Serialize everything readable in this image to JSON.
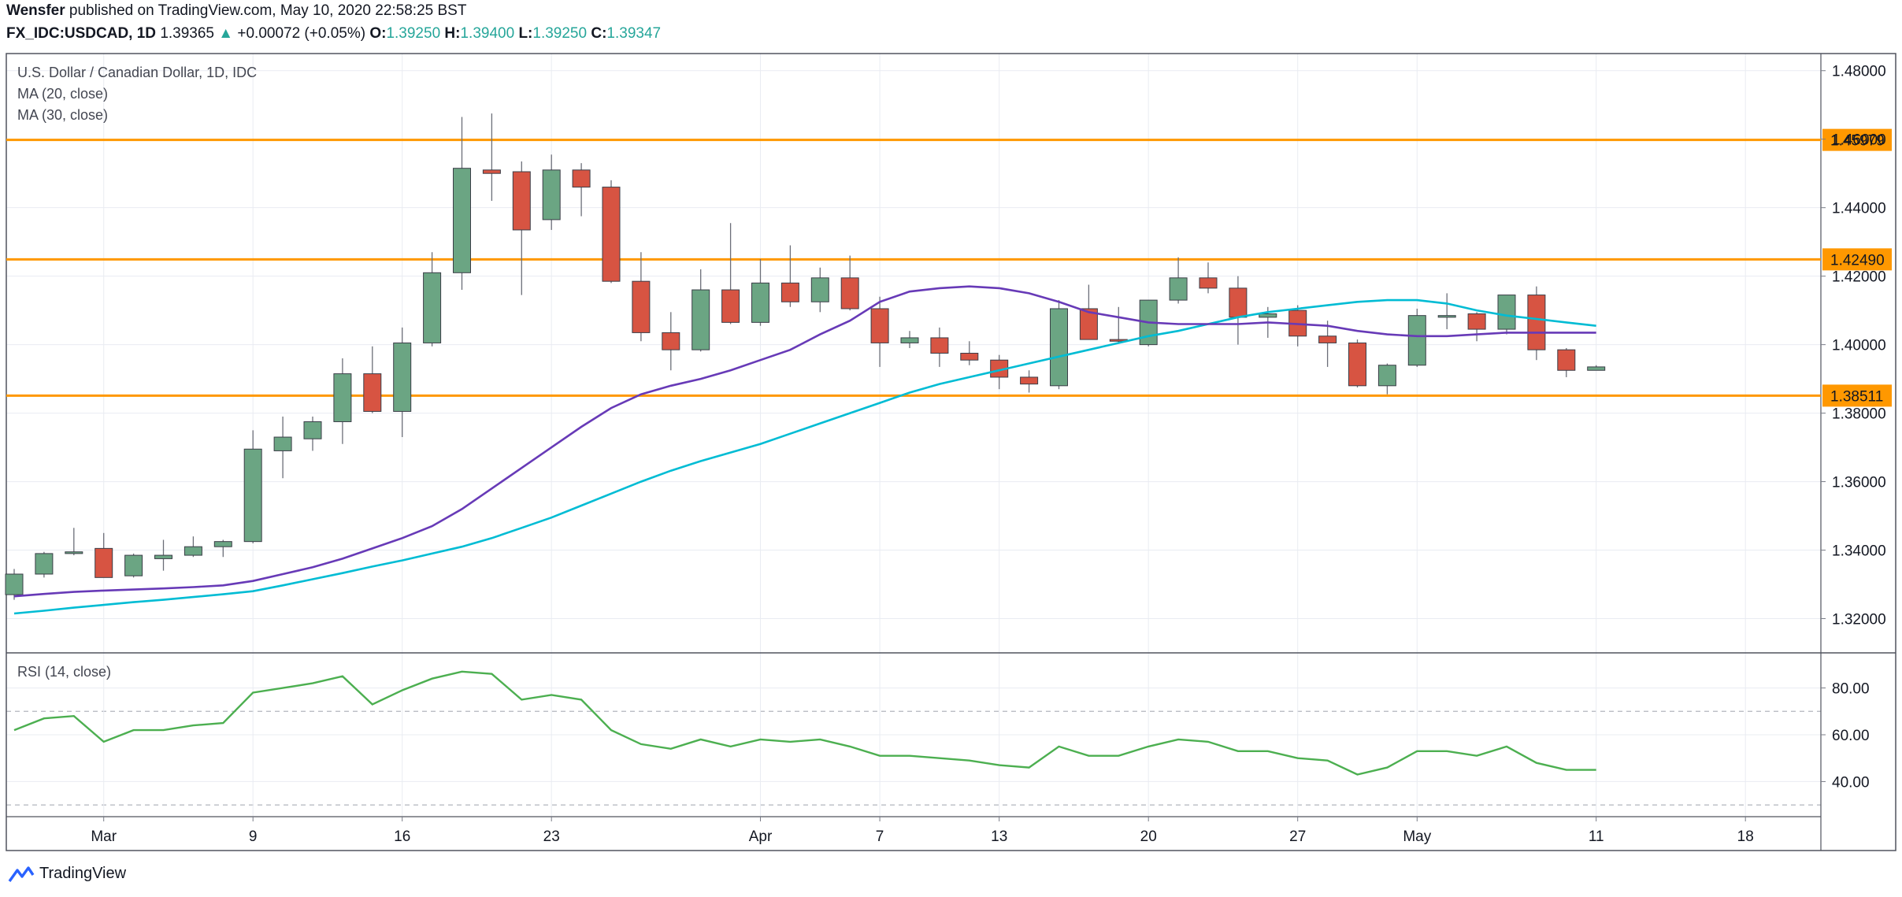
{
  "header": {
    "author": "Wensfer",
    "published_text": "published on TradingView.com, May 10, 2020 22:58:25 BST",
    "symbol": "FX_IDC:USDCAD, 1D",
    "last": "1.39365",
    "change_arrow": "▲",
    "change": "+0.00072 (+0.05%)",
    "o_label": "O:",
    "o_value": "1.39250",
    "h_label": "H:",
    "h_value": "1.39400",
    "l_label": "L:",
    "l_value": "1.39250",
    "c_label": "C:",
    "c_value": "1.39347"
  },
  "legend": {
    "instrument": "U.S. Dollar / Canadian Dollar, 1D, IDC",
    "ma20": "MA (20, close)",
    "ma30": "MA (30, close)",
    "rsi": "RSI (14, close)"
  },
  "footer": {
    "brand": "TradingView"
  },
  "colors": {
    "up": "#6ba583",
    "down": "#d75442",
    "ma20": "#673ab7",
    "ma30": "#00bcd4",
    "rsi": "#4caf50",
    "hline": "#ff9800",
    "hline_label_bg": "#ff9800",
    "grid": "#e9ecf2"
  },
  "chart_data": [
    {
      "type": "candlestick",
      "title": "U.S. Dollar / Canadian Dollar, 1D, IDC",
      "ylim": [
        1.31,
        1.485
      ],
      "price_ticks": [
        "1.48000",
        "1.46000",
        "1.44000",
        "1.42000",
        "1.40000",
        "1.38000",
        "1.36000",
        "1.34000",
        "1.32000"
      ],
      "x_ticks": [
        {
          "label": "Mar",
          "i": 3
        },
        {
          "label": "9",
          "i": 8
        },
        {
          "label": "16",
          "i": 13
        },
        {
          "label": "23",
          "i": 18
        },
        {
          "label": "Apr",
          "i": 25
        },
        {
          "label": "7",
          "i": 29
        },
        {
          "label": "13",
          "i": 33
        },
        {
          "label": "20",
          "i": 38
        },
        {
          "label": "27",
          "i": 43
        },
        {
          "label": "May",
          "i": 47
        },
        {
          "label": "11",
          "i": 53
        },
        {
          "label": "18",
          "i": 58
        }
      ],
      "horizontal_levels": [
        "1.45979",
        "1.42490",
        "1.38511"
      ],
      "candles": [
        {
          "o": 1.327,
          "h": 1.3345,
          "l": 1.3255,
          "c": 1.333
        },
        {
          "o": 1.333,
          "h": 1.3395,
          "l": 1.332,
          "c": 1.339
        },
        {
          "o": 1.339,
          "h": 1.3465,
          "l": 1.3385,
          "c": 1.3395
        },
        {
          "o": 1.3405,
          "h": 1.345,
          "l": 1.332,
          "c": 1.332
        },
        {
          "o": 1.3325,
          "h": 1.339,
          "l": 1.332,
          "c": 1.3385
        },
        {
          "o": 1.3375,
          "h": 1.343,
          "l": 1.334,
          "c": 1.3385
        },
        {
          "o": 1.3385,
          "h": 1.344,
          "l": 1.338,
          "c": 1.341
        },
        {
          "o": 1.341,
          "h": 1.343,
          "l": 1.338,
          "c": 1.3425
        },
        {
          "o": 1.3425,
          "h": 1.375,
          "l": 1.342,
          "c": 1.3695
        },
        {
          "o": 1.369,
          "h": 1.379,
          "l": 1.361,
          "c": 1.373
        },
        {
          "o": 1.3725,
          "h": 1.379,
          "l": 1.369,
          "c": 1.3775
        },
        {
          "o": 1.3775,
          "h": 1.396,
          "l": 1.371,
          "c": 1.3915
        },
        {
          "o": 1.3915,
          "h": 1.3995,
          "l": 1.38,
          "c": 1.3805
        },
        {
          "o": 1.3805,
          "h": 1.405,
          "l": 1.373,
          "c": 1.4005
        },
        {
          "o": 1.4005,
          "h": 1.427,
          "l": 1.3995,
          "c": 1.421
        },
        {
          "o": 1.421,
          "h": 1.4665,
          "l": 1.416,
          "c": 1.4515
        },
        {
          "o": 1.451,
          "h": 1.4675,
          "l": 1.442,
          "c": 1.45
        },
        {
          "o": 1.4505,
          "h": 1.4535,
          "l": 1.4145,
          "c": 1.4335
        },
        {
          "o": 1.4365,
          "h": 1.4555,
          "l": 1.4335,
          "c": 1.451
        },
        {
          "o": 1.451,
          "h": 1.453,
          "l": 1.4375,
          "c": 1.446
        },
        {
          "o": 1.446,
          "h": 1.448,
          "l": 1.418,
          "c": 1.4185
        },
        {
          "o": 1.4185,
          "h": 1.427,
          "l": 1.401,
          "c": 1.4035
        },
        {
          "o": 1.4035,
          "h": 1.4095,
          "l": 1.3925,
          "c": 1.3985
        },
        {
          "o": 1.3985,
          "h": 1.422,
          "l": 1.398,
          "c": 1.416
        },
        {
          "o": 1.416,
          "h": 1.4355,
          "l": 1.406,
          "c": 1.4065
        },
        {
          "o": 1.4065,
          "h": 1.425,
          "l": 1.4055,
          "c": 1.418
        },
        {
          "o": 1.418,
          "h": 1.429,
          "l": 1.411,
          "c": 1.4125
        },
        {
          "o": 1.4125,
          "h": 1.4225,
          "l": 1.4095,
          "c": 1.4195
        },
        {
          "o": 1.4195,
          "h": 1.426,
          "l": 1.41,
          "c": 1.4105
        },
        {
          "o": 1.4105,
          "h": 1.414,
          "l": 1.3935,
          "c": 1.4005
        },
        {
          "o": 1.4005,
          "h": 1.404,
          "l": 1.399,
          "c": 1.402
        },
        {
          "o": 1.402,
          "h": 1.405,
          "l": 1.3935,
          "c": 1.3975
        },
        {
          "o": 1.3975,
          "h": 1.401,
          "l": 1.394,
          "c": 1.3955
        },
        {
          "o": 1.3955,
          "h": 1.397,
          "l": 1.387,
          "c": 1.3905
        },
        {
          "o": 1.3905,
          "h": 1.3925,
          "l": 1.386,
          "c": 1.3885
        },
        {
          "o": 1.388,
          "h": 1.413,
          "l": 1.387,
          "c": 1.4105
        },
        {
          "o": 1.4105,
          "h": 1.4175,
          "l": 1.4015,
          "c": 1.4015
        },
        {
          "o": 1.4015,
          "h": 1.411,
          "l": 1.4005,
          "c": 1.401
        },
        {
          "o": 1.4,
          "h": 1.413,
          "l": 1.3995,
          "c": 1.413
        },
        {
          "o": 1.413,
          "h": 1.4255,
          "l": 1.412,
          "c": 1.4195
        },
        {
          "o": 1.4195,
          "h": 1.424,
          "l": 1.415,
          "c": 1.4165
        },
        {
          "o": 1.4165,
          "h": 1.42,
          "l": 1.4,
          "c": 1.408
        },
        {
          "o": 1.408,
          "h": 1.411,
          "l": 1.402,
          "c": 1.409
        },
        {
          "o": 1.41,
          "h": 1.4115,
          "l": 1.3995,
          "c": 1.4025
        },
        {
          "o": 1.4025,
          "h": 1.407,
          "l": 1.3935,
          "c": 1.4005
        },
        {
          "o": 1.4005,
          "h": 1.4015,
          "l": 1.3875,
          "c": 1.388
        },
        {
          "o": 1.388,
          "h": 1.3945,
          "l": 1.3855,
          "c": 1.394
        },
        {
          "o": 1.394,
          "h": 1.4105,
          "l": 1.3935,
          "c": 1.4085
        },
        {
          "o": 1.408,
          "h": 1.415,
          "l": 1.4045,
          "c": 1.4085
        },
        {
          "o": 1.409,
          "h": 1.4095,
          "l": 1.401,
          "c": 1.4045
        },
        {
          "o": 1.4045,
          "h": 1.4145,
          "l": 1.403,
          "c": 1.4145
        },
        {
          "o": 1.4145,
          "h": 1.417,
          "l": 1.3955,
          "c": 1.3985
        },
        {
          "o": 1.3985,
          "h": 1.399,
          "l": 1.3905,
          "c": 1.3925
        },
        {
          "o": 1.3925,
          "h": 1.394,
          "l": 1.3925,
          "c": 1.3935
        }
      ],
      "ma20": [
        1.3265,
        1.3272,
        1.3278,
        1.3282,
        1.3285,
        1.3288,
        1.3292,
        1.3297,
        1.331,
        1.333,
        1.335,
        1.3375,
        1.3405,
        1.3435,
        1.347,
        1.352,
        1.358,
        1.364,
        1.37,
        1.376,
        1.3815,
        1.3855,
        1.388,
        1.39,
        1.3925,
        1.3955,
        1.3985,
        1.403,
        1.407,
        1.4125,
        1.4155,
        1.4165,
        1.417,
        1.4165,
        1.415,
        1.4125,
        1.4095,
        1.408,
        1.4065,
        1.406,
        1.406,
        1.406,
        1.4065,
        1.406,
        1.4055,
        1.404,
        1.403,
        1.4025,
        1.4025,
        1.403,
        1.4035,
        1.4035,
        1.4035,
        1.4035
      ],
      "ma30": [
        1.3215,
        1.3223,
        1.3232,
        1.324,
        1.3248,
        1.3255,
        1.3263,
        1.3271,
        1.328,
        1.3297,
        1.3315,
        1.3333,
        1.3352,
        1.337,
        1.339,
        1.341,
        1.3435,
        1.3465,
        1.3495,
        1.353,
        1.3565,
        1.36,
        1.3632,
        1.366,
        1.3685,
        1.371,
        1.374,
        1.377,
        1.38,
        1.383,
        1.386,
        1.3885,
        1.3905,
        1.3925,
        1.3945,
        1.3965,
        1.3985,
        1.4005,
        1.4025,
        1.404,
        1.406,
        1.408,
        1.4095,
        1.4105,
        1.4115,
        1.4125,
        1.413,
        1.413,
        1.412,
        1.41,
        1.4085,
        1.4075,
        1.4065,
        1.4055
      ]
    },
    {
      "type": "line",
      "title": "RSI (14, close)",
      "ylim": [
        25,
        95
      ],
      "y_ticks": [
        "80.00",
        "60.00",
        "40.00"
      ],
      "levels": [
        70,
        30
      ],
      "values": [
        62,
        67,
        68,
        57,
        62,
        62,
        64,
        65,
        78,
        80,
        82,
        85,
        73,
        79,
        84,
        87,
        86,
        75,
        77,
        75,
        62,
        56,
        54,
        58,
        55,
        58,
        57,
        58,
        55,
        51,
        51,
        50,
        49,
        47,
        46,
        55,
        51,
        51,
        55,
        58,
        57,
        53,
        53,
        50,
        49,
        43,
        46,
        53,
        53,
        51,
        55,
        48,
        45,
        45
      ]
    }
  ]
}
